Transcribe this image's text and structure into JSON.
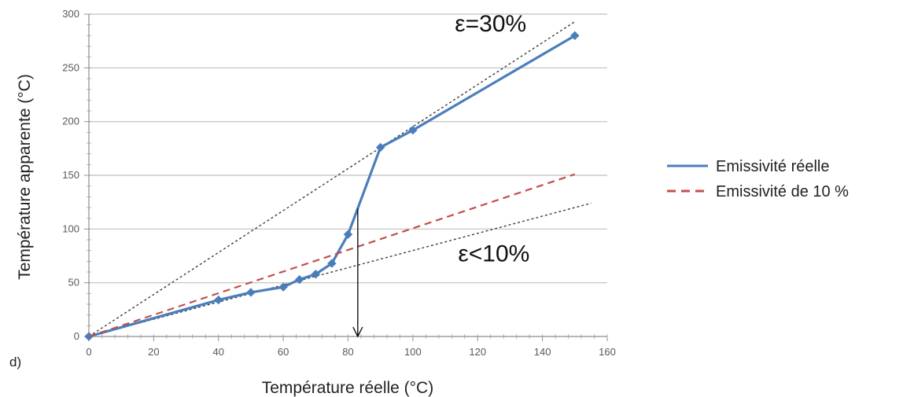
{
  "chart_data": {
    "type": "line",
    "panel_label": "d)",
    "xlabel": "Température réelle (°C)",
    "ylabel": "Température apparente (°C)",
    "xlim": [
      0,
      160
    ],
    "ylim": [
      0,
      300
    ],
    "x_ticks": [
      "0",
      "20",
      "40",
      "60",
      "80",
      "100",
      "120",
      "140",
      "160"
    ],
    "y_ticks": [
      "0",
      "50",
      "100",
      "150",
      "200",
      "250",
      "300"
    ],
    "grid": "horizontal",
    "legend_position": "right",
    "series": [
      {
        "name": "Emissivité réelle",
        "style": "solid",
        "color": "#4a7ebb",
        "markers": true,
        "x": [
          0,
          40,
          50,
          60,
          65,
          70,
          75,
          80,
          90,
          100,
          150
        ],
        "y": [
          0,
          34,
          41,
          46,
          53,
          58,
          68,
          95,
          176,
          192,
          280
        ]
      },
      {
        "name": "Emissivité de 10 %",
        "style": "dashed",
        "color": "#c0504d",
        "markers": false,
        "x": [
          0,
          150
        ],
        "y": [
          0,
          151
        ]
      }
    ],
    "reference_lines": [
      {
        "style": "dotted",
        "color": "#404040",
        "x": [
          0,
          150
        ],
        "y": [
          0,
          293
        ]
      },
      {
        "style": "dotted",
        "color": "#404040",
        "x": [
          0,
          155
        ],
        "y": [
          0,
          124
        ]
      }
    ],
    "annotations": [
      {
        "text": "ε=30%",
        "x": 124,
        "y": 284
      },
      {
        "text": "ε<10%",
        "x": 125,
        "y": 70
      }
    ],
    "arrow": {
      "x": 83,
      "y_from": 119,
      "y_to": 0
    }
  }
}
